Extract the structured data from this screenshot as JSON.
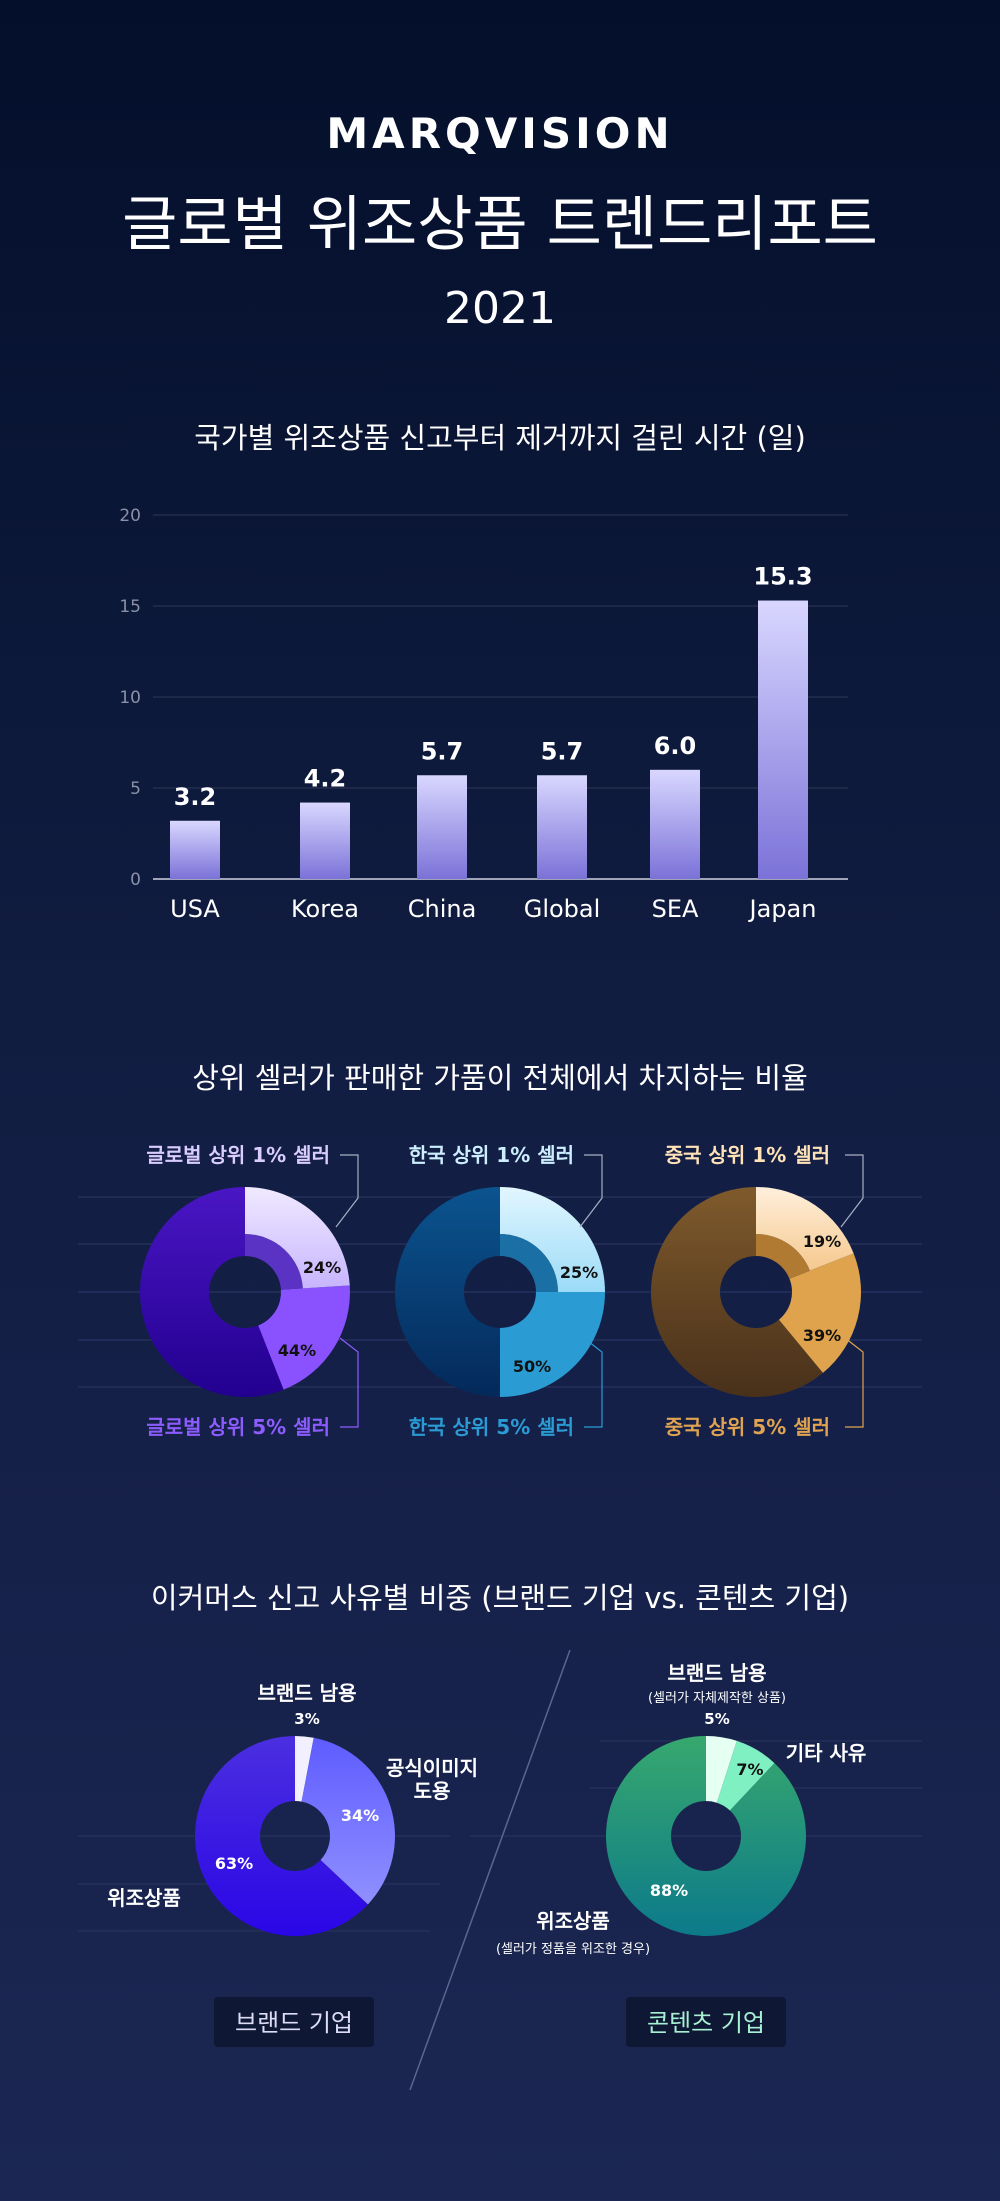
{
  "header": {
    "brand": "MARQVISION",
    "title": "글로벌 위조상품 트렌드리포트",
    "year": "2021"
  },
  "chart_data": [
    {
      "type": "bar",
      "title": "국가별 위조상품 신고부터 제거까지 걸린 시간 (일)",
      "categories": [
        "USA",
        "Korea",
        "China",
        "Global",
        "SEA",
        "Japan"
      ],
      "values": [
        3.2,
        4.2,
        5.7,
        5.7,
        6.0,
        15.3
      ],
      "value_labels": [
        "3.2",
        "4.2",
        "5.7",
        "5.7",
        "6.0",
        "15.3"
      ],
      "yticks": [
        "0",
        "5",
        "10",
        "15",
        "20"
      ],
      "ylim": [
        0,
        20
      ],
      "grid": true,
      "colors": {
        "top": "#d9d7ff",
        "bottom": "#7b72d8"
      }
    },
    {
      "type": "pie",
      "title": "상위 셀러가 판매한 가품이 전체에서 차지하는 비율",
      "donuts": [
        {
          "top1_label": "글로벌 상위 1% 셀러",
          "top5_label": "글로벌 상위 5% 셀러",
          "top1": 24,
          "top5": 44,
          "top1_text": "24%",
          "top5_text": "44%",
          "colors": {
            "base1": "#4a16c4",
            "base2": "#22008f",
            "light1": "#f0eaff",
            "light2": "#c7b5ff",
            "mid": "#8a52ff",
            "band": "#5b33c4",
            "label1": "#d9ccff",
            "label5": "#8d5cff"
          }
        },
        {
          "top1_label": "한국 상위 1% 셀러",
          "top5_label": "한국 상위 5% 셀러",
          "top1": 25,
          "top5": 50,
          "top1_text": "25%",
          "top5_text": "50%",
          "colors": {
            "base1": "#0b548f",
            "base2": "#04295a",
            "light1": "#e2f6ff",
            "light2": "#9bdbf7",
            "mid": "#2a9bd3",
            "band": "#1a6fa5",
            "label1": "#cdeeff",
            "label5": "#2a9bd3"
          }
        },
        {
          "top1_label": "중국 상위 1% 셀러",
          "top5_label": "중국 상위 5% 셀러",
          "top1": 19,
          "top5": 39,
          "top1_text": "19%",
          "top5_text": "39%",
          "colors": {
            "base1": "#7f5a2c",
            "base2": "#48301a",
            "light1": "#fff0dc",
            "light2": "#f5c88e",
            "mid": "#dfa24d",
            "band": "#b07a32",
            "label1": "#ffe2b8",
            "label5": "#e0a352"
          }
        }
      ]
    },
    {
      "type": "pie",
      "title": "이커머스 신고 사유별 비중 (브랜드 기업 vs. 콘텐츠 기업)",
      "groups": [
        {
          "name": "브랜드 기업",
          "slices": [
            {
              "label": "브랜드 남용",
              "value": 3,
              "text": "3%",
              "color": "#f2f0ff"
            },
            {
              "label": "공식이미지",
              "label2": "도용",
              "value": 34,
              "text": "34%",
              "color": "#7a7aff"
            },
            {
              "label": "위조상품",
              "value": 63,
              "text": "63%",
              "color": "#3612e0"
            }
          ]
        },
        {
          "name": "콘텐츠 기업",
          "slices": [
            {
              "label": "브랜드 남용",
              "note": "(셀러가 자체제작한 상품)",
              "value": 5,
              "text": "5%",
              "color": "#e6fff3"
            },
            {
              "label": "기타 사유",
              "value": 7,
              "text": "7%",
              "color": "#7ff0c2"
            },
            {
              "label": "위조상품",
              "note": "(셀러가 정품을 위조한 경우)",
              "value": 88,
              "text": "88%",
              "color": "#23927a"
            }
          ]
        }
      ]
    }
  ]
}
